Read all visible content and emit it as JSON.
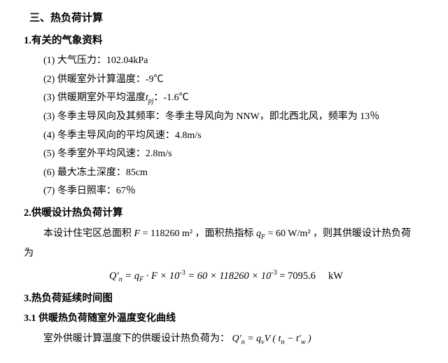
{
  "section_title": "三、热负荷计算",
  "sub1": {
    "title": "1.有关的气象资料",
    "items": [
      "(1) 大气压力：102.04kPa",
      "(2) 供暖室外计算温度：-9℃",
      "(3) 供暖期室外平均温度t_{pj}：-1.6℃",
      "(3) 冬季主导风向及其频率：冬季主导风向为 NNW，即北西北风，频率为 13％",
      "(4) 冬季主导风向的平均风速：4.8m/s",
      "(5) 冬季室外平均风速：2.8m/s",
      "(6) 最大冻土深度：85cm",
      "(7) 冬季日照率：67％"
    ],
    "item3_parts": {
      "pre": "(3) 供暖期室外平均温度",
      "sym_main": "t",
      "sym_sub": "pj",
      "post": "：-1.6℃"
    }
  },
  "sub2": {
    "title": "2.供暖设计热负荷计算",
    "para_a": "本设计住宅区总面积",
    "F_eq": "F = 118260 m²",
    "para_b": "，面积热指标",
    "qF_eq": "q_F = 60 W/m²",
    "para_c": "，则其供暖设计热负荷",
    "line2": "为",
    "formula": "Q′ₙ = q_F · F × 10⁻³ = 60 × 118260 × 10⁻³ = 7095.6　 kW",
    "formula_parts": {
      "lhs": "Q′",
      "lhs_sub": "n",
      "eq1": " = q",
      "qsub": "F",
      "mid": " · F × 10",
      "exp1": "-3",
      "eq2": " = 60 × 118260 × 10",
      "exp2": "-3",
      "eq3": " = 7095.6　 kW"
    }
  },
  "sub3": {
    "title": "3.热负荷延续时间图",
    "s31_title": "3.1 供暖热负荷随室外温度变化曲线",
    "line": "室外供暖计算温度下的供暖设计热负荷为：",
    "rhs": "Q′ₙ = qᵥV ( tₙ − t′w )",
    "rhs_parts": {
      "a": "Q′",
      "an": "n",
      "b": " = q",
      "bv": "v",
      "c": "V ( t",
      "cn": "n",
      "d": " − t′",
      "dw": "w",
      "e": " )"
    }
  }
}
